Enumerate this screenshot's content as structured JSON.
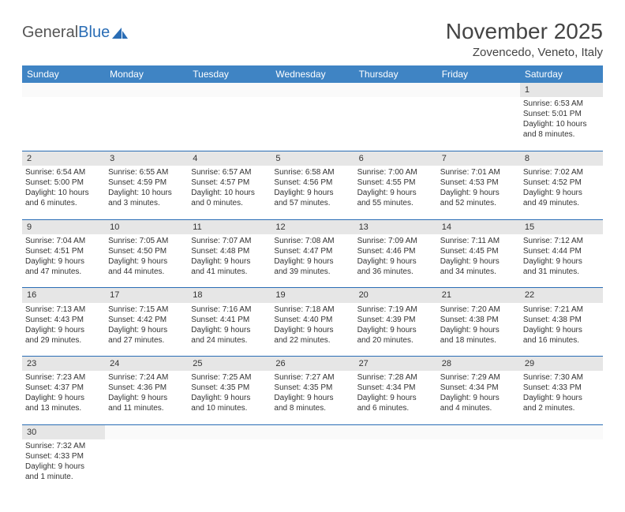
{
  "logo": {
    "general": "General",
    "blue": "Blue"
  },
  "title": "November 2025",
  "location": "Zovencedo, Veneto, Italy",
  "colors": {
    "header_bg": "#3f84c4",
    "header_text": "#ffffff",
    "daynum_bg": "#e6e6e6",
    "rule": "#2a6db5",
    "text": "#333333"
  },
  "weekdays": [
    "Sunday",
    "Monday",
    "Tuesday",
    "Wednesday",
    "Thursday",
    "Friday",
    "Saturday"
  ],
  "weeks": [
    [
      null,
      null,
      null,
      null,
      null,
      null,
      {
        "n": "1",
        "sr": "Sunrise: 6:53 AM",
        "ss": "Sunset: 5:01 PM",
        "d1": "Daylight: 10 hours",
        "d2": "and 8 minutes."
      }
    ],
    [
      {
        "n": "2",
        "sr": "Sunrise: 6:54 AM",
        "ss": "Sunset: 5:00 PM",
        "d1": "Daylight: 10 hours",
        "d2": "and 6 minutes."
      },
      {
        "n": "3",
        "sr": "Sunrise: 6:55 AM",
        "ss": "Sunset: 4:59 PM",
        "d1": "Daylight: 10 hours",
        "d2": "and 3 minutes."
      },
      {
        "n": "4",
        "sr": "Sunrise: 6:57 AM",
        "ss": "Sunset: 4:57 PM",
        "d1": "Daylight: 10 hours",
        "d2": "and 0 minutes."
      },
      {
        "n": "5",
        "sr": "Sunrise: 6:58 AM",
        "ss": "Sunset: 4:56 PM",
        "d1": "Daylight: 9 hours",
        "d2": "and 57 minutes."
      },
      {
        "n": "6",
        "sr": "Sunrise: 7:00 AM",
        "ss": "Sunset: 4:55 PM",
        "d1": "Daylight: 9 hours",
        "d2": "and 55 minutes."
      },
      {
        "n": "7",
        "sr": "Sunrise: 7:01 AM",
        "ss": "Sunset: 4:53 PM",
        "d1": "Daylight: 9 hours",
        "d2": "and 52 minutes."
      },
      {
        "n": "8",
        "sr": "Sunrise: 7:02 AM",
        "ss": "Sunset: 4:52 PM",
        "d1": "Daylight: 9 hours",
        "d2": "and 49 minutes."
      }
    ],
    [
      {
        "n": "9",
        "sr": "Sunrise: 7:04 AM",
        "ss": "Sunset: 4:51 PM",
        "d1": "Daylight: 9 hours",
        "d2": "and 47 minutes."
      },
      {
        "n": "10",
        "sr": "Sunrise: 7:05 AM",
        "ss": "Sunset: 4:50 PM",
        "d1": "Daylight: 9 hours",
        "d2": "and 44 minutes."
      },
      {
        "n": "11",
        "sr": "Sunrise: 7:07 AM",
        "ss": "Sunset: 4:48 PM",
        "d1": "Daylight: 9 hours",
        "d2": "and 41 minutes."
      },
      {
        "n": "12",
        "sr": "Sunrise: 7:08 AM",
        "ss": "Sunset: 4:47 PM",
        "d1": "Daylight: 9 hours",
        "d2": "and 39 minutes."
      },
      {
        "n": "13",
        "sr": "Sunrise: 7:09 AM",
        "ss": "Sunset: 4:46 PM",
        "d1": "Daylight: 9 hours",
        "d2": "and 36 minutes."
      },
      {
        "n": "14",
        "sr": "Sunrise: 7:11 AM",
        "ss": "Sunset: 4:45 PM",
        "d1": "Daylight: 9 hours",
        "d2": "and 34 minutes."
      },
      {
        "n": "15",
        "sr": "Sunrise: 7:12 AM",
        "ss": "Sunset: 4:44 PM",
        "d1": "Daylight: 9 hours",
        "d2": "and 31 minutes."
      }
    ],
    [
      {
        "n": "16",
        "sr": "Sunrise: 7:13 AM",
        "ss": "Sunset: 4:43 PM",
        "d1": "Daylight: 9 hours",
        "d2": "and 29 minutes."
      },
      {
        "n": "17",
        "sr": "Sunrise: 7:15 AM",
        "ss": "Sunset: 4:42 PM",
        "d1": "Daylight: 9 hours",
        "d2": "and 27 minutes."
      },
      {
        "n": "18",
        "sr": "Sunrise: 7:16 AM",
        "ss": "Sunset: 4:41 PM",
        "d1": "Daylight: 9 hours",
        "d2": "and 24 minutes."
      },
      {
        "n": "19",
        "sr": "Sunrise: 7:18 AM",
        "ss": "Sunset: 4:40 PM",
        "d1": "Daylight: 9 hours",
        "d2": "and 22 minutes."
      },
      {
        "n": "20",
        "sr": "Sunrise: 7:19 AM",
        "ss": "Sunset: 4:39 PM",
        "d1": "Daylight: 9 hours",
        "d2": "and 20 minutes."
      },
      {
        "n": "21",
        "sr": "Sunrise: 7:20 AM",
        "ss": "Sunset: 4:38 PM",
        "d1": "Daylight: 9 hours",
        "d2": "and 18 minutes."
      },
      {
        "n": "22",
        "sr": "Sunrise: 7:21 AM",
        "ss": "Sunset: 4:38 PM",
        "d1": "Daylight: 9 hours",
        "d2": "and 16 minutes."
      }
    ],
    [
      {
        "n": "23",
        "sr": "Sunrise: 7:23 AM",
        "ss": "Sunset: 4:37 PM",
        "d1": "Daylight: 9 hours",
        "d2": "and 13 minutes."
      },
      {
        "n": "24",
        "sr": "Sunrise: 7:24 AM",
        "ss": "Sunset: 4:36 PM",
        "d1": "Daylight: 9 hours",
        "d2": "and 11 minutes."
      },
      {
        "n": "25",
        "sr": "Sunrise: 7:25 AM",
        "ss": "Sunset: 4:35 PM",
        "d1": "Daylight: 9 hours",
        "d2": "and 10 minutes."
      },
      {
        "n": "26",
        "sr": "Sunrise: 7:27 AM",
        "ss": "Sunset: 4:35 PM",
        "d1": "Daylight: 9 hours",
        "d2": "and 8 minutes."
      },
      {
        "n": "27",
        "sr": "Sunrise: 7:28 AM",
        "ss": "Sunset: 4:34 PM",
        "d1": "Daylight: 9 hours",
        "d2": "and 6 minutes."
      },
      {
        "n": "28",
        "sr": "Sunrise: 7:29 AM",
        "ss": "Sunset: 4:34 PM",
        "d1": "Daylight: 9 hours",
        "d2": "and 4 minutes."
      },
      {
        "n": "29",
        "sr": "Sunrise: 7:30 AM",
        "ss": "Sunset: 4:33 PM",
        "d1": "Daylight: 9 hours",
        "d2": "and 2 minutes."
      }
    ],
    [
      {
        "n": "30",
        "sr": "Sunrise: 7:32 AM",
        "ss": "Sunset: 4:33 PM",
        "d1": "Daylight: 9 hours",
        "d2": "and 1 minute."
      },
      null,
      null,
      null,
      null,
      null,
      null
    ]
  ]
}
